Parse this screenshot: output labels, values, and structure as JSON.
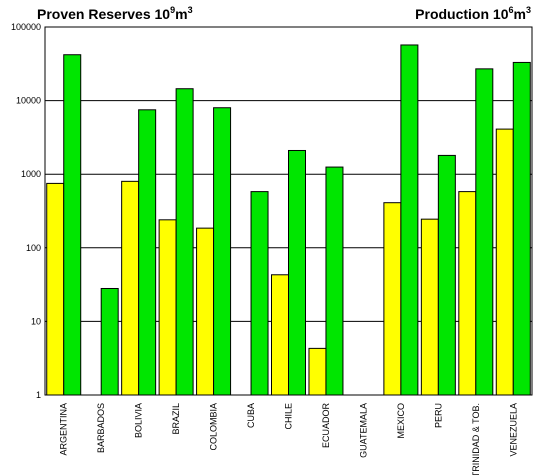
{
  "chart_data": {
    "type": "bar",
    "title_left": {
      "text": "Proven Reserves 10",
      "sup": "9",
      "unit": "m",
      "unit_sup": "3"
    },
    "title_right": {
      "text": "Production 10",
      "sup": "6",
      "unit": "m",
      "unit_sup": "3"
    },
    "y_scale": "log",
    "ylim": [
      1,
      100000
    ],
    "y_ticks": [
      "1",
      "10",
      "100",
      "1000",
      "10000",
      "100000"
    ],
    "grid": true,
    "categories": [
      "ARGENTINA",
      "BARBADOS",
      "BOLIVIA",
      "BRAZIL",
      "COLOMBIA",
      "CUBA",
      "CHILE",
      "ECUADOR",
      "GUATEMALA",
      "MEXICO",
      "PERU",
      "TRINIDAD & TOB.",
      "VENEZUELA"
    ],
    "series": [
      {
        "color": "#ffff00",
        "values": [
          750,
          null,
          800,
          240,
          185,
          null,
          43,
          4.3,
          null,
          410,
          245,
          580,
          4100
        ]
      },
      {
        "color": "#00e600",
        "values": [
          42000,
          28,
          7500,
          14500,
          8000,
          580,
          2100,
          1250,
          null,
          57000,
          1800,
          27000,
          33000
        ]
      }
    ]
  }
}
